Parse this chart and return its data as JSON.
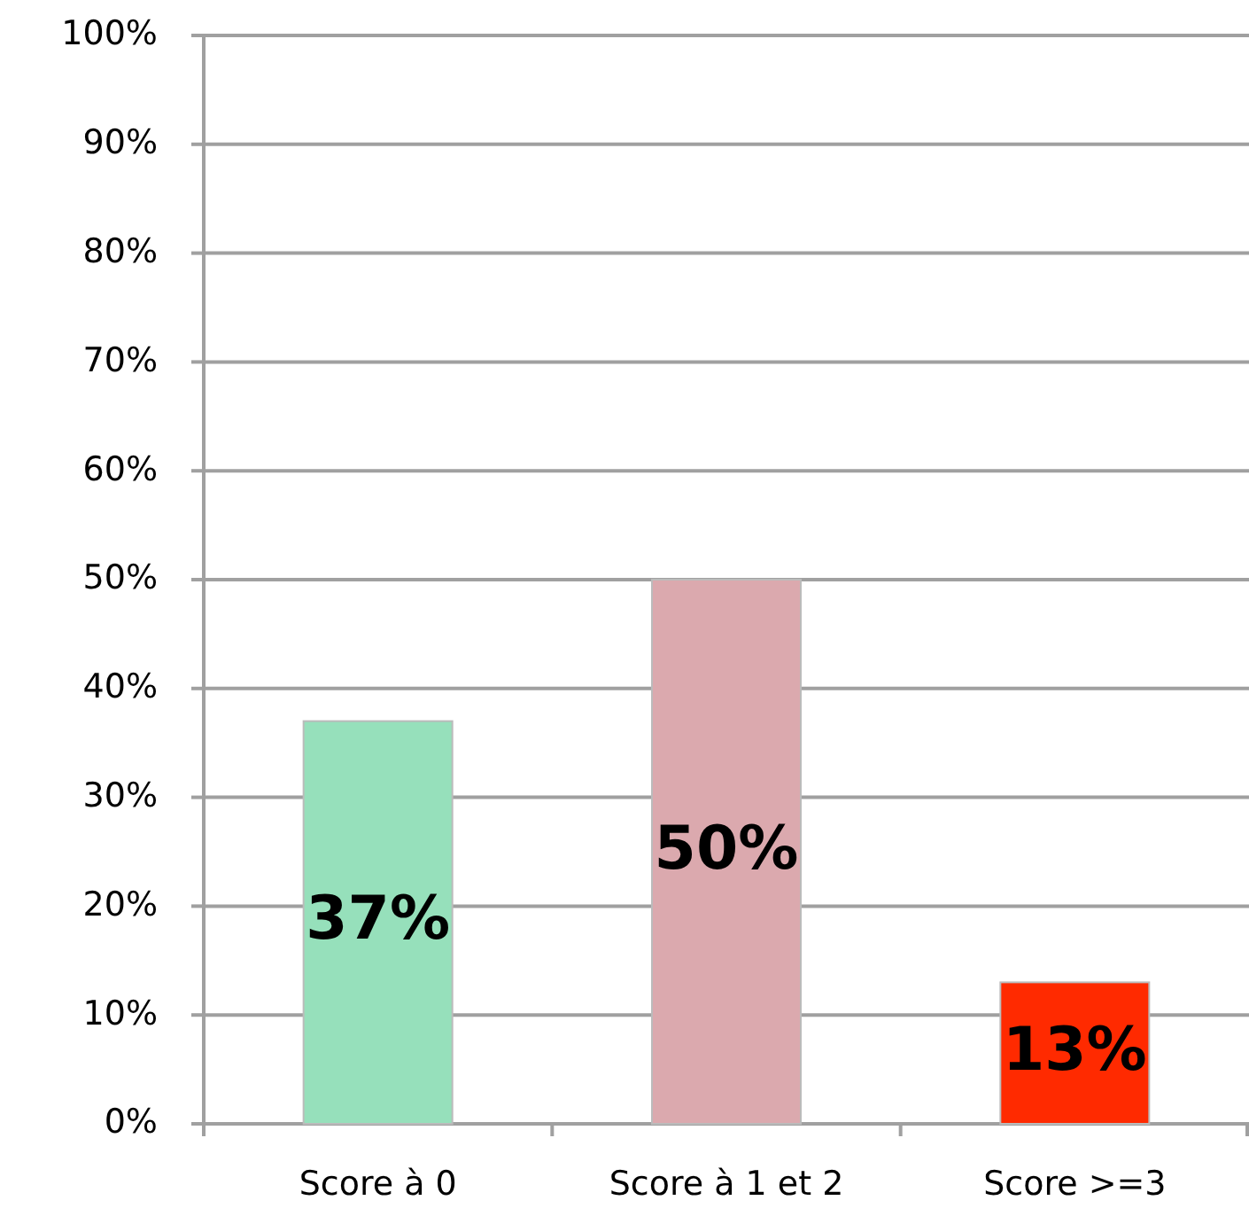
{
  "chart_data": {
    "type": "bar",
    "categories": [
      "Score à 0",
      "Score à 1 et 2",
      "Score >=3"
    ],
    "values": [
      37,
      50,
      13
    ],
    "colors": [
      "#96e0bb",
      "#dba9ae",
      "#ff2a00"
    ],
    "ylim": [
      0,
      100
    ],
    "yticks": [
      {
        "value": 0,
        "label": "0%"
      },
      {
        "value": 10,
        "label": "10%"
      },
      {
        "value": 20,
        "label": "20%"
      },
      {
        "value": 30,
        "label": "30%"
      },
      {
        "value": 40,
        "label": "40%"
      },
      {
        "value": 50,
        "label": "50%"
      },
      {
        "value": 60,
        "label": "60%"
      },
      {
        "value": 70,
        "label": "70%"
      },
      {
        "value": 80,
        "label": "80%"
      },
      {
        "value": 90,
        "label": "90%"
      },
      {
        "value": 100,
        "label": "100%"
      }
    ],
    "value_labels": [
      "37%",
      "50%",
      "13%"
    ],
    "grid": "y"
  }
}
